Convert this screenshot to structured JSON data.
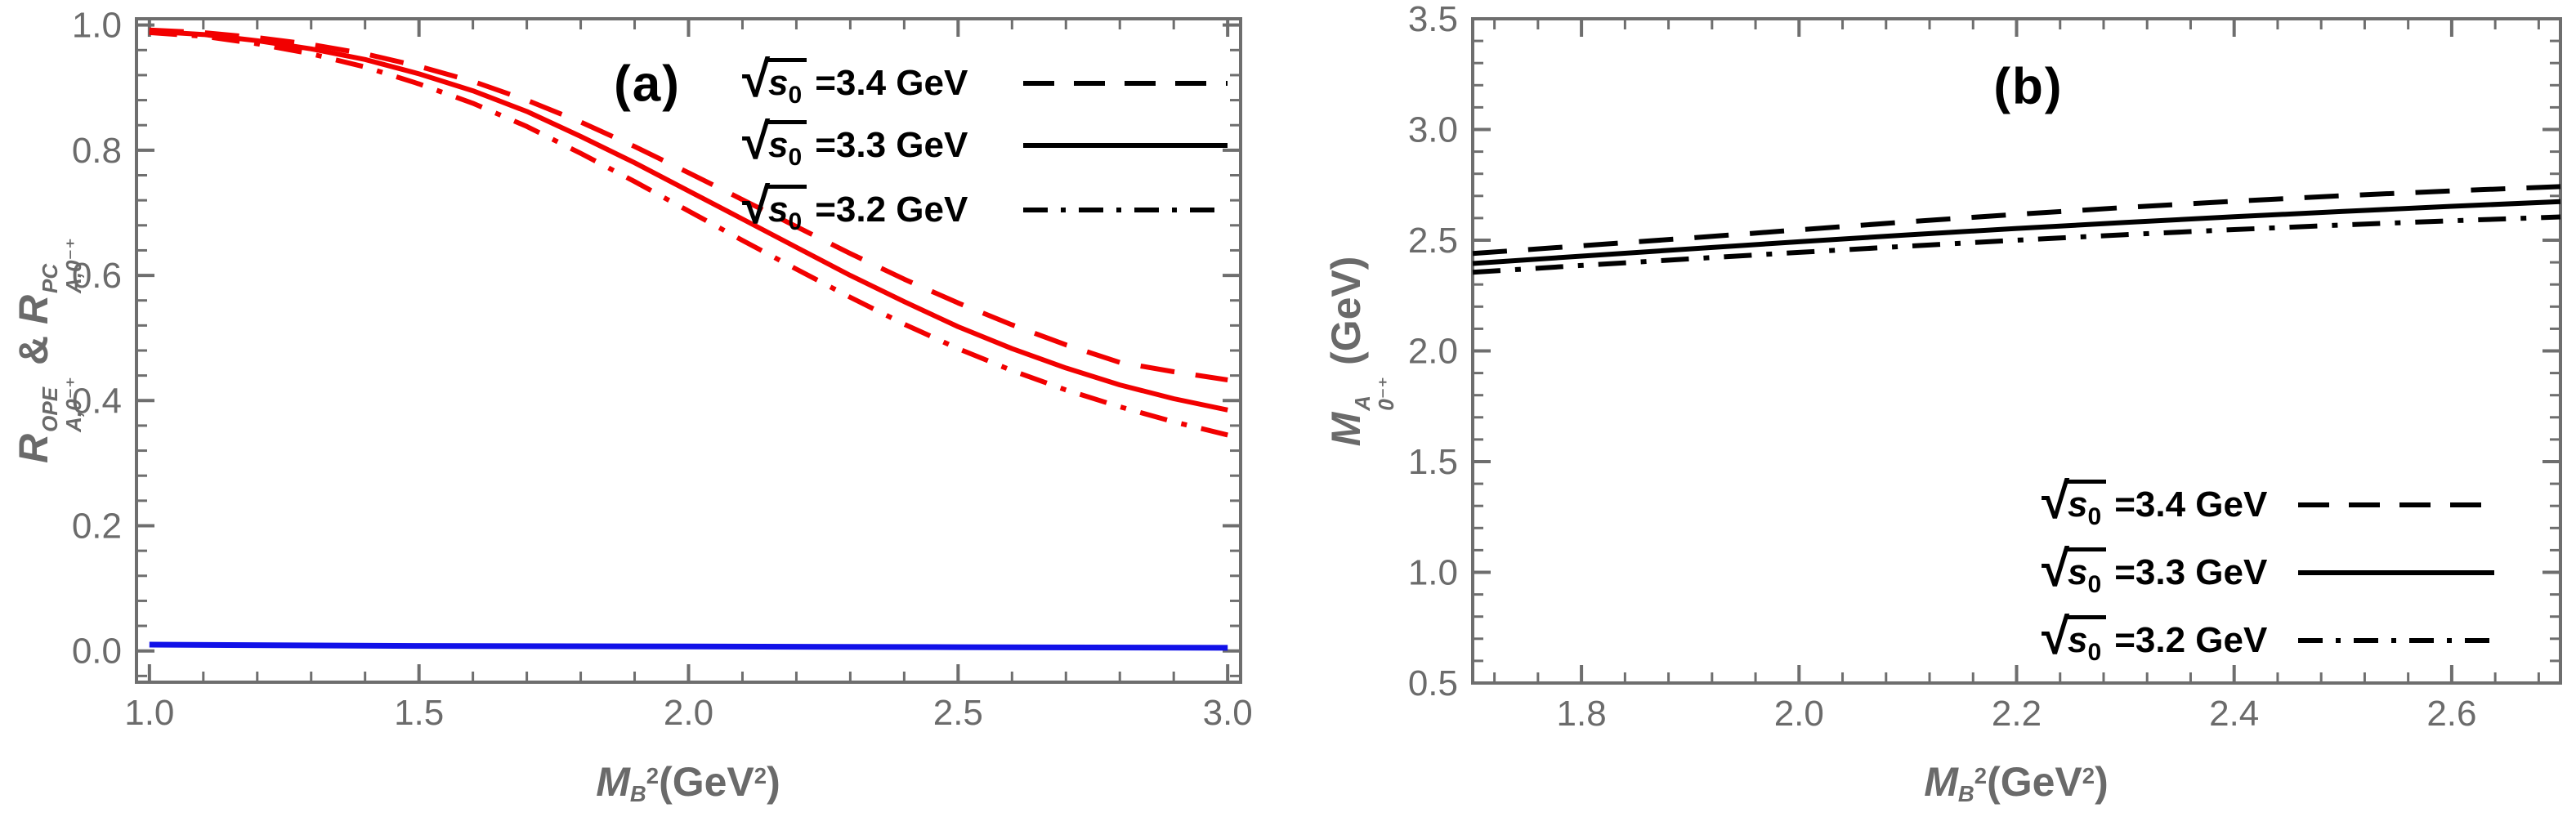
{
  "figure": {
    "background": "#ffffff",
    "axis_color": "#6e6e6e",
    "tick_label_color": "#6b6b6b",
    "axis_label_color": "#6a6a6a",
    "text_color": "#000000",
    "red": "#f20000",
    "blue": "#1111e8",
    "black": "#000000"
  },
  "chart_data": [
    {
      "type": "line",
      "panel_tag": "(a)",
      "title": "",
      "xlabel_segments": [
        {
          "t": "M",
          "it": true,
          "sub": "B"
        },
        {
          "sup": "2"
        },
        {
          "t": "(GeV"
        },
        {
          "sup": "2"
        },
        {
          "t": ")"
        }
      ],
      "ylabel_segments": [
        {
          "t": "R",
          "it": true,
          "sup": "OPE",
          "sub": "A,0⁻⁺"
        },
        {
          "t": " & "
        },
        {
          "t": "R",
          "it": true,
          "sup": "PC",
          "sub": "A,0⁻⁺"
        }
      ],
      "xlabel_text": "M_B^2 (GeV^2)",
      "ylabel_text": "R_{A,0-+}^{OPE} & R_{A,0-+}^{PC}",
      "xlim": [
        1.0,
        3.0
      ],
      "ylim": [
        -0.05,
        1.01
      ],
      "grid": false,
      "xticks": {
        "values": [
          1.0,
          1.5,
          2.0,
          2.5,
          3.0
        ],
        "labels": [
          "1.0",
          "1.5",
          "2.0",
          "2.5",
          "3.0"
        ],
        "minor_step": 0.1
      },
      "yticks": {
        "values": [
          0.0,
          0.2,
          0.4,
          0.6,
          0.8,
          1.0
        ],
        "labels": [
          "0.0",
          "0.2",
          "0.4",
          "0.6",
          "0.8",
          "1.0"
        ],
        "minor_step": 0.04
      },
      "series": [
        {
          "name": "sqrt(s0)=3.4 GeV (OPE ratio)",
          "color": "#f20000",
          "style": "dashed",
          "width": 6,
          "x": [
            1.0,
            1.1,
            1.2,
            1.3,
            1.4,
            1.5,
            1.6,
            1.7,
            1.8,
            1.9,
            2.0,
            2.1,
            2.2,
            2.3,
            2.4,
            2.5,
            2.6,
            2.7,
            2.8,
            2.9,
            3.0
          ],
          "y": [
            0.992,
            0.988,
            0.98,
            0.969,
            0.954,
            0.934,
            0.91,
            0.88,
            0.845,
            0.806,
            0.764,
            0.721,
            0.678,
            0.635,
            0.594,
            0.556,
            0.521,
            0.489,
            0.461,
            0.446,
            0.433
          ]
        },
        {
          "name": "sqrt(s0)=3.3 GeV (OPE ratio)",
          "color": "#f20000",
          "style": "solid",
          "width": 6,
          "x": [
            1.0,
            1.1,
            1.2,
            1.3,
            1.4,
            1.5,
            1.6,
            1.7,
            1.8,
            1.9,
            2.0,
            2.1,
            2.2,
            2.3,
            2.4,
            2.5,
            2.6,
            2.7,
            2.8,
            2.9,
            3.0
          ],
          "y": [
            0.99,
            0.985,
            0.975,
            0.962,
            0.945,
            0.922,
            0.895,
            0.862,
            0.822,
            0.78,
            0.735,
            0.69,
            0.645,
            0.6,
            0.558,
            0.518,
            0.483,
            0.452,
            0.425,
            0.403,
            0.385
          ]
        },
        {
          "name": "sqrt(s0)=3.2 GeV (OPE ratio)",
          "color": "#f20000",
          "style": "dashdot",
          "width": 6,
          "x": [
            1.0,
            1.1,
            1.2,
            1.3,
            1.4,
            1.5,
            1.6,
            1.7,
            1.8,
            1.9,
            2.0,
            2.1,
            2.2,
            2.3,
            2.4,
            2.5,
            2.6,
            2.7,
            2.8,
            2.9,
            3.0
          ],
          "y": [
            0.988,
            0.982,
            0.97,
            0.954,
            0.933,
            0.906,
            0.875,
            0.838,
            0.795,
            0.75,
            0.703,
            0.656,
            0.61,
            0.565,
            0.522,
            0.483,
            0.448,
            0.417,
            0.39,
            0.366,
            0.345
          ]
        },
        {
          "name": "PC contribution ratio",
          "color": "#1111e8",
          "style": "solid",
          "width": 7,
          "x": [
            1.0,
            1.5,
            2.0,
            2.5,
            3.0
          ],
          "y": [
            0.01,
            0.008,
            0.007,
            0.006,
            0.005
          ]
        }
      ],
      "legend": {
        "position": "upper-right",
        "entries": [
          {
            "radical": "s",
            "radical_sub": "0",
            "value_text": "=3.4 GeV",
            "style": "dashed"
          },
          {
            "radical": "s",
            "radical_sub": "0",
            "value_text": "=3.3 GeV",
            "style": "solid"
          },
          {
            "radical": "s",
            "radical_sub": "0",
            "value_text": "=3.2 GeV",
            "style": "dashdot"
          }
        ]
      }
    },
    {
      "type": "line",
      "panel_tag": "(b)",
      "title": "",
      "xlabel_segments": [
        {
          "t": "M",
          "it": true,
          "sub": "B"
        },
        {
          "sup": "2"
        },
        {
          "t": "(GeV"
        },
        {
          "sup": "2"
        },
        {
          "t": ")"
        }
      ],
      "ylabel_segments": [
        {
          "t": "M",
          "it": true,
          "sup": "A",
          "sub": "0⁻⁺"
        },
        {
          "t": " (GeV)"
        }
      ],
      "xlabel_text": "M_B^2 (GeV^2)",
      "ylabel_text": "M_{0-+}^{A} (GeV)",
      "xlim": [
        1.7,
        2.7
      ],
      "ylim": [
        0.5,
        3.5
      ],
      "grid": false,
      "xticks": {
        "values": [
          1.8,
          2.0,
          2.2,
          2.4,
          2.6
        ],
        "labels": [
          "1.8",
          "2.0",
          "2.2",
          "2.4",
          "2.6"
        ],
        "minor_step": 0.04
      },
      "yticks": {
        "values": [
          0.5,
          1.0,
          1.5,
          2.0,
          2.5,
          3.0,
          3.5
        ],
        "labels": [
          "0.5",
          "1.0",
          "1.5",
          "2.0",
          "2.5",
          "3.0",
          "3.5"
        ],
        "minor_step": 0.1
      },
      "series": [
        {
          "name": "sqrt(s0)=3.4 GeV (mass)",
          "color": "#000000",
          "style": "dashed",
          "width": 6,
          "x": [
            1.7,
            1.8,
            1.9,
            2.0,
            2.1,
            2.2,
            2.3,
            2.4,
            2.5,
            2.6,
            2.7
          ],
          "y": [
            2.44,
            2.475,
            2.51,
            2.547,
            2.583,
            2.617,
            2.648,
            2.676,
            2.701,
            2.723,
            2.742
          ]
        },
        {
          "name": "sqrt(s0)=3.3 GeV (mass)",
          "color": "#000000",
          "style": "solid",
          "width": 6,
          "x": [
            1.7,
            1.8,
            1.9,
            2.0,
            2.1,
            2.2,
            2.3,
            2.4,
            2.5,
            2.6,
            2.7
          ],
          "y": [
            2.395,
            2.428,
            2.461,
            2.493,
            2.524,
            2.553,
            2.58,
            2.606,
            2.63,
            2.653,
            2.674
          ]
        },
        {
          "name": "sqrt(s0)=3.2 GeV (mass)",
          "color": "#000000",
          "style": "dashdot",
          "width": 6,
          "x": [
            1.7,
            1.8,
            1.9,
            2.0,
            2.1,
            2.2,
            2.3,
            2.4,
            2.5,
            2.6,
            2.7
          ],
          "y": [
            2.355,
            2.386,
            2.416,
            2.445,
            2.473,
            2.5,
            2.525,
            2.548,
            2.569,
            2.588,
            2.605
          ]
        }
      ],
      "legend": {
        "position": "lower-right",
        "entries": [
          {
            "radical": "s",
            "radical_sub": "0",
            "value_text": "=3.4 GeV",
            "style": "dashed"
          },
          {
            "radical": "s",
            "radical_sub": "0",
            "value_text": "=3.3 GeV",
            "style": "solid"
          },
          {
            "radical": "s",
            "radical_sub": "0",
            "value_text": "=3.2 GeV",
            "style": "dashdot"
          }
        ]
      }
    }
  ]
}
